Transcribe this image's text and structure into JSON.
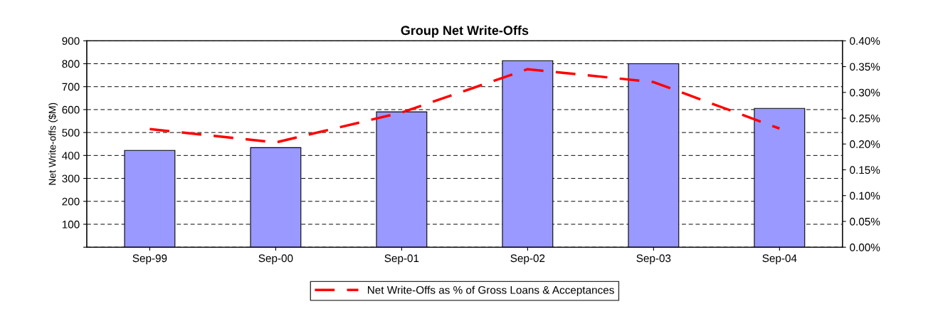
{
  "chart_data": {
    "type": "bar",
    "title": "Group Net Write-Offs",
    "ylabel": "Net Write-offs ($M)",
    "categories": [
      "Sep-99",
      "Sep-00",
      "Sep-01",
      "Sep-02",
      "Sep-03",
      "Sep-04"
    ],
    "series": [
      {
        "color": "#9999ff",
        "values": [
          422,
          434,
          590,
          813,
          800,
          605
        ]
      },
      {
        "type": "line",
        "axis": "y2",
        "name": "Net Write-Offs as % of Gross Loans & Acceptances",
        "color": "#ff0000",
        "line_style": "dashed",
        "marker": "none",
        "values": [
          0.229,
          0.203,
          0.261,
          0.345,
          0.32,
          0.23
        ]
      }
    ],
    "ylim": [
      0,
      900
    ],
    "yticks": [
      {
        "value": 0,
        "label": null
      },
      100,
      200,
      300,
      400,
      500,
      600,
      700,
      800,
      900
    ],
    "y2lim": [
      0,
      0.4
    ],
    "y2ticks": [
      {
        "value": 0,
        "label": "0.00%"
      },
      {
        "value": 0.05,
        "label": "0.05%"
      },
      {
        "value": 0.1,
        "label": "0.10%"
      },
      {
        "value": 0.15,
        "label": "0.15%"
      },
      {
        "value": 0.2,
        "label": "0.20%"
      },
      {
        "value": 0.25,
        "label": "0.25%"
      },
      {
        "value": 0.3,
        "label": "0.30%"
      },
      {
        "value": 0.35,
        "label": "0.35%"
      },
      {
        "value": 0.4,
        "label": "0.40%"
      }
    ],
    "grid": "y",
    "legend": "bottom"
  }
}
